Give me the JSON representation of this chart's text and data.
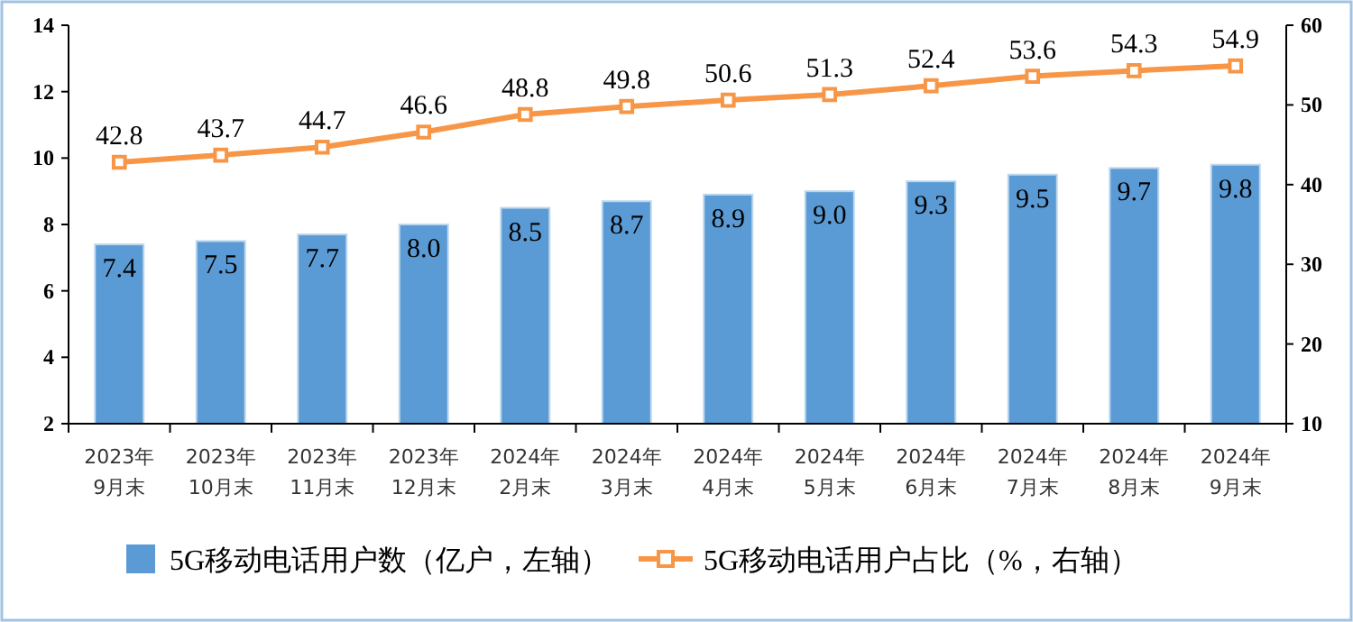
{
  "chart_data": {
    "type": "bar",
    "categories": [
      "2023年9月末",
      "2023年10月末",
      "2023年11月末",
      "2023年12月末",
      "2024年2月末",
      "2024年3月末",
      "2024年4月末",
      "2024年5月末",
      "2024年6月末",
      "2024年7月末",
      "2024年8月末",
      "2024年9月末"
    ],
    "series": [
      {
        "name": "5G移动电话用户数（亿户，左轴）",
        "color": "#5b9bd5",
        "values": [
          7.4,
          7.5,
          7.7,
          8.0,
          8.5,
          8.7,
          8.9,
          9.0,
          9.3,
          9.5,
          9.7,
          9.8
        ],
        "value_labels": [
          "7.4",
          "7.5",
          "7.7",
          "8.0",
          "8.5",
          "8.7",
          "8.9",
          "9.0",
          "9.3",
          "9.5",
          "9.7",
          "9.8"
        ]
      },
      {
        "name": "5G移动电话用户占比（%，右轴）",
        "type": "line",
        "axis": "y2",
        "color": "#f79646",
        "values": [
          42.8,
          43.7,
          44.7,
          46.6,
          48.8,
          49.8,
          50.6,
          51.3,
          52.4,
          53.6,
          54.3,
          54.9
        ],
        "value_labels": [
          "42.8",
          "43.7",
          "44.7",
          "46.6",
          "48.8",
          "49.8",
          "50.6",
          "51.3",
          "52.4",
          "53.6",
          "54.3",
          "54.9"
        ]
      }
    ],
    "ylim": [
      2,
      14
    ],
    "yticks": [
      2,
      4,
      6,
      8,
      10,
      12,
      14
    ],
    "y2lim": [
      10,
      60
    ],
    "y2ticks": [
      10,
      20,
      30,
      40,
      50,
      60
    ],
    "legend": "bottom",
    "marker": "square",
    "grid": false
  }
}
